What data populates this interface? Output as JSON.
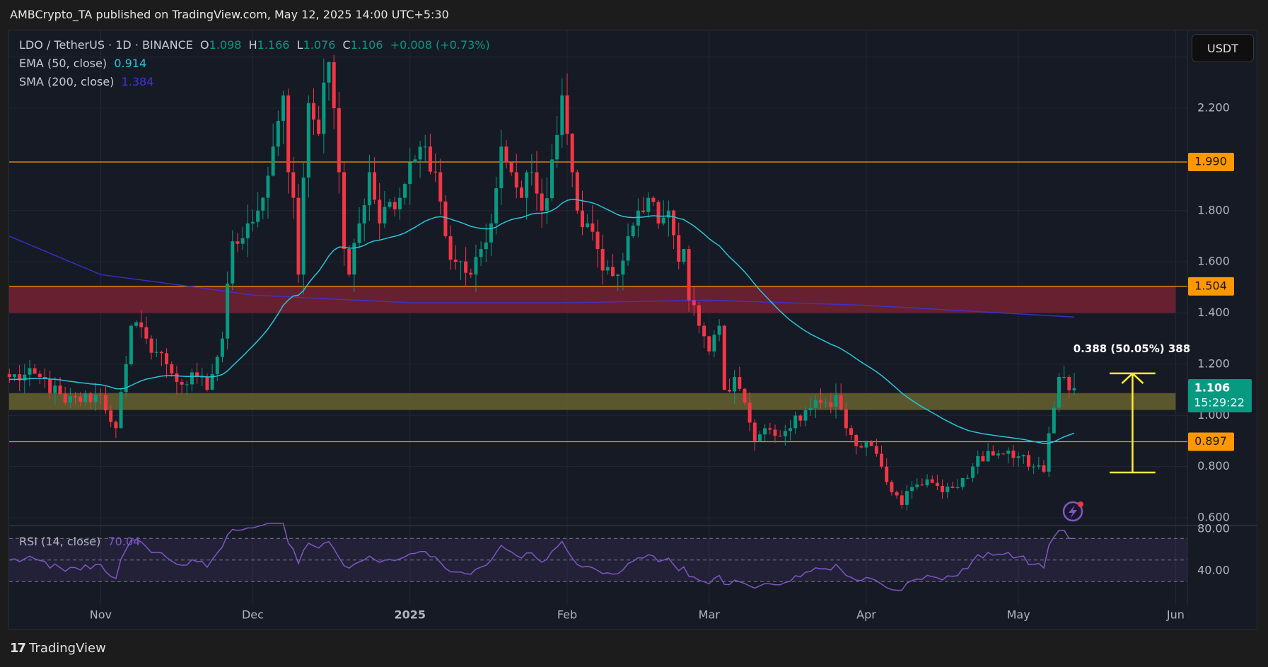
{
  "header": {
    "published": "AMBCrypto_TA published on TradingView.com, May 12, 2025 14:00 UTC+5:30"
  },
  "legend": {
    "symbol": "LDO / TetherUS · 1D · BINANCE",
    "o_label": "O",
    "o": "1.098",
    "h_label": "H",
    "h": "1.166",
    "l_label": "L",
    "l": "1.076",
    "c_label": "C",
    "c": "1.106",
    "change": "+0.008 (+0.73%)",
    "ema_label": "EMA (50, close)",
    "ema_value": "0.914",
    "sma_label": "SMA (200, close)",
    "sma_value": "1.384",
    "rsi_label": "RSI (14, close)",
    "rsi_value": "70.04"
  },
  "currency_button": "USDT",
  "current_price": {
    "price": "1.106",
    "countdown": "15:29:22"
  },
  "measure_label": "0.388 (50.05%) 388",
  "footer": {
    "brand": "TradingView"
  },
  "colors": {
    "up": "#089981",
    "down": "#f23645",
    "ema": "#26c6da",
    "sma": "#3f33e0",
    "rsi": "#7e57c2",
    "level": "#ff9800",
    "measure": "#ffeb3b"
  },
  "chart_data": {
    "type": "candlestick",
    "title": "LDO / TetherUS · 1D · BINANCE",
    "start_date": "2024-10-14",
    "end_date": "2025-05-12",
    "ylim": [
      0.55,
      2.45
    ],
    "y_ticks": [
      "2.200",
      "1.800",
      "1.600",
      "1.400",
      "1.200",
      "1.000",
      "0.800",
      "0.600"
    ],
    "y_tick_values": [
      2.2,
      1.8,
      1.6,
      1.4,
      1.2,
      1.0,
      0.8,
      0.6
    ],
    "x_ticks": [
      {
        "label": "Nov",
        "date": "2024-11-01"
      },
      {
        "label": "Dec",
        "date": "2024-12-01"
      },
      {
        "label": "2025",
        "date": "2025-01-01"
      },
      {
        "label": "Feb",
        "date": "2025-02-01"
      },
      {
        "label": "Mar",
        "date": "2025-03-01"
      },
      {
        "label": "Apr",
        "date": "2025-04-01"
      },
      {
        "label": "May",
        "date": "2025-05-01"
      },
      {
        "label": "Jun",
        "date": "2025-06-01"
      }
    ],
    "close_keypoints": [
      [
        "2024-10-14",
        1.15
      ],
      [
        "2024-10-20",
        1.15
      ],
      [
        "2024-10-25",
        1.05
      ],
      [
        "2024-11-01",
        1.08
      ],
      [
        "2024-11-04",
        0.95
      ],
      [
        "2024-11-06",
        1.2
      ],
      [
        "2024-11-07",
        1.35
      ],
      [
        "2024-11-10",
        1.3
      ],
      [
        "2024-11-14",
        1.2
      ],
      [
        "2024-11-17",
        1.12
      ],
      [
        "2024-11-20",
        1.15
      ],
      [
        "2024-11-22",
        1.1
      ],
      [
        "2024-11-25",
        1.3
      ],
      [
        "2024-11-27",
        1.68
      ],
      [
        "2024-11-30",
        1.75
      ],
      [
        "2024-12-02",
        1.8
      ],
      [
        "2024-12-03",
        1.85
      ],
      [
        "2024-12-05",
        2.05
      ],
      [
        "2024-12-07",
        2.25
      ],
      [
        "2024-12-08",
        1.95
      ],
      [
        "2024-12-09",
        1.85
      ],
      [
        "2024-12-10",
        1.55
      ],
      [
        "2024-12-12",
        2.22
      ],
      [
        "2024-12-14",
        2.1
      ],
      [
        "2024-12-15",
        2.3
      ],
      [
        "2024-12-16",
        2.38
      ],
      [
        "2024-12-17",
        2.2
      ],
      [
        "2024-12-18",
        1.95
      ],
      [
        "2024-12-19",
        1.65
      ],
      [
        "2024-12-20",
        1.55
      ],
      [
        "2024-12-22",
        1.75
      ],
      [
        "2024-12-24",
        1.95
      ],
      [
        "2024-12-26",
        1.75
      ],
      [
        "2024-12-30",
        1.85
      ],
      [
        "2025-01-02",
        2.0
      ],
      [
        "2025-01-04",
        2.05
      ],
      [
        "2025-01-06",
        1.95
      ],
      [
        "2025-01-08",
        1.7
      ],
      [
        "2025-01-10",
        1.6
      ],
      [
        "2025-01-13",
        1.55
      ],
      [
        "2025-01-15",
        1.65
      ],
      [
        "2025-01-17",
        1.75
      ],
      [
        "2025-01-19",
        2.05
      ],
      [
        "2025-01-21",
        1.95
      ],
      [
        "2025-01-23",
        1.85
      ],
      [
        "2025-01-25",
        1.95
      ],
      [
        "2025-01-27",
        1.8
      ],
      [
        "2025-01-29",
        2.0
      ],
      [
        "2025-01-31",
        2.25
      ],
      [
        "2025-02-01",
        2.1
      ],
      [
        "2025-02-02",
        1.95
      ],
      [
        "2025-02-03",
        1.8
      ],
      [
        "2025-02-05",
        1.75
      ],
      [
        "2025-02-07",
        1.65
      ],
      [
        "2025-02-09",
        1.58
      ],
      [
        "2025-02-11",
        1.55
      ],
      [
        "2025-02-13",
        1.7
      ],
      [
        "2025-02-15",
        1.8
      ],
      [
        "2025-02-17",
        1.85
      ],
      [
        "2025-02-19",
        1.75
      ],
      [
        "2025-02-21",
        1.8
      ],
      [
        "2025-02-23",
        1.6
      ],
      [
        "2025-02-24",
        1.65
      ],
      [
        "2025-02-25",
        1.45
      ],
      [
        "2025-02-27",
        1.35
      ],
      [
        "2025-03-01",
        1.25
      ],
      [
        "2025-03-03",
        1.35
      ],
      [
        "2025-03-04",
        1.1
      ],
      [
        "2025-03-06",
        1.15
      ],
      [
        "2025-03-08",
        1.05
      ],
      [
        "2025-03-10",
        0.9
      ],
      [
        "2025-03-12",
        0.95
      ],
      [
        "2025-03-14",
        0.92
      ],
      [
        "2025-03-17",
        0.95
      ],
      [
        "2025-03-20",
        1.02
      ],
      [
        "2025-03-24",
        1.05
      ],
      [
        "2025-03-26",
        1.08
      ],
      [
        "2025-03-28",
        0.95
      ],
      [
        "2025-03-30",
        0.88
      ],
      [
        "2025-04-02",
        0.88
      ],
      [
        "2025-04-04",
        0.8
      ],
      [
        "2025-04-06",
        0.7
      ],
      [
        "2025-04-08",
        0.65
      ],
      [
        "2025-04-10",
        0.72
      ],
      [
        "2025-04-13",
        0.75
      ],
      [
        "2025-04-16",
        0.7
      ],
      [
        "2025-04-19",
        0.72
      ],
      [
        "2025-04-22",
        0.8
      ],
      [
        "2025-04-25",
        0.86
      ],
      [
        "2025-04-28",
        0.85
      ],
      [
        "2025-05-01",
        0.84
      ],
      [
        "2025-05-04",
        0.8
      ],
      [
        "2025-05-06",
        0.78
      ],
      [
        "2025-05-07",
        0.93
      ],
      [
        "2025-05-08",
        1.03
      ],
      [
        "2025-05-09",
        1.15
      ],
      [
        "2025-05-10",
        1.15
      ],
      [
        "2025-05-11",
        1.098
      ],
      [
        "2025-05-12",
        1.106
      ]
    ],
    "last_candle": {
      "open": 1.098,
      "high": 1.166,
      "low": 1.076,
      "close": 1.106
    },
    "sma200_keypoints": [
      [
        "2024-10-14",
        1.7
      ],
      [
        "2024-11-01",
        1.55
      ],
      [
        "2024-11-20",
        1.5
      ],
      [
        "2024-12-01",
        1.47
      ],
      [
        "2025-01-01",
        1.44
      ],
      [
        "2025-02-01",
        1.44
      ],
      [
        "2025-03-01",
        1.45
      ],
      [
        "2025-04-01",
        1.43
      ],
      [
        "2025-05-12",
        1.384
      ]
    ],
    "ema50_seed": 1.14,
    "horizontal_levels": [
      {
        "label": "1.990",
        "value": 1.99
      },
      {
        "label": "1.504",
        "value": 1.504
      },
      {
        "label": "0.897",
        "value": 0.897
      }
    ],
    "zones": [
      {
        "name": "resistance-zone",
        "from": 1.4,
        "to": 1.504,
        "color": "#7a2233"
      },
      {
        "name": "support-zone",
        "from": 1.021,
        "to": 1.087,
        "color": "#6b6530"
      }
    ],
    "measure": {
      "from": 0.777,
      "to": 1.164,
      "start_date": "2025-05-19",
      "end_date": "2025-05-28"
    },
    "rsi": {
      "ylim": [
        20,
        85
      ],
      "y_ticks": [
        "80.00",
        "40.00"
      ],
      "y_tick_values": [
        80,
        40
      ],
      "bands": [
        70,
        50,
        30
      ],
      "last": 70.04
    }
  }
}
